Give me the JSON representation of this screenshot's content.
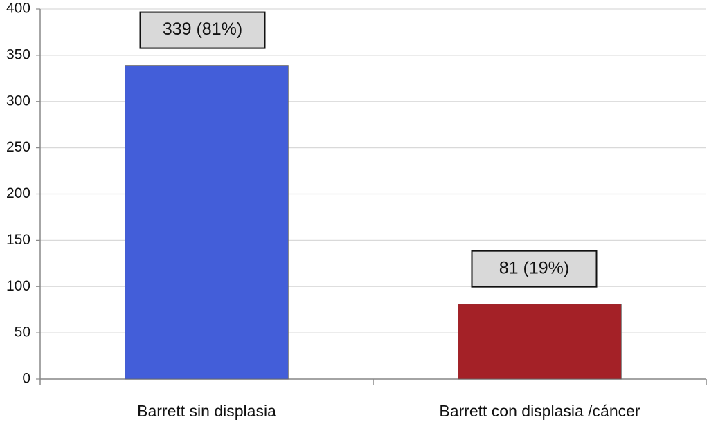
{
  "chart_data": {
    "type": "bar",
    "categories": [
      "Barrett sin displasia",
      "Barrett con displasia /cáncer"
    ],
    "values": [
      339,
      81
    ],
    "value_labels": [
      "339 (81%)",
      "81 (19%)"
    ],
    "colors": [
      "#435ed9",
      "#a42127"
    ],
    "ylim": [
      0,
      400
    ],
    "yticks": [
      0,
      50,
      100,
      150,
      200,
      250,
      300,
      350,
      400
    ],
    "grid": true
  }
}
